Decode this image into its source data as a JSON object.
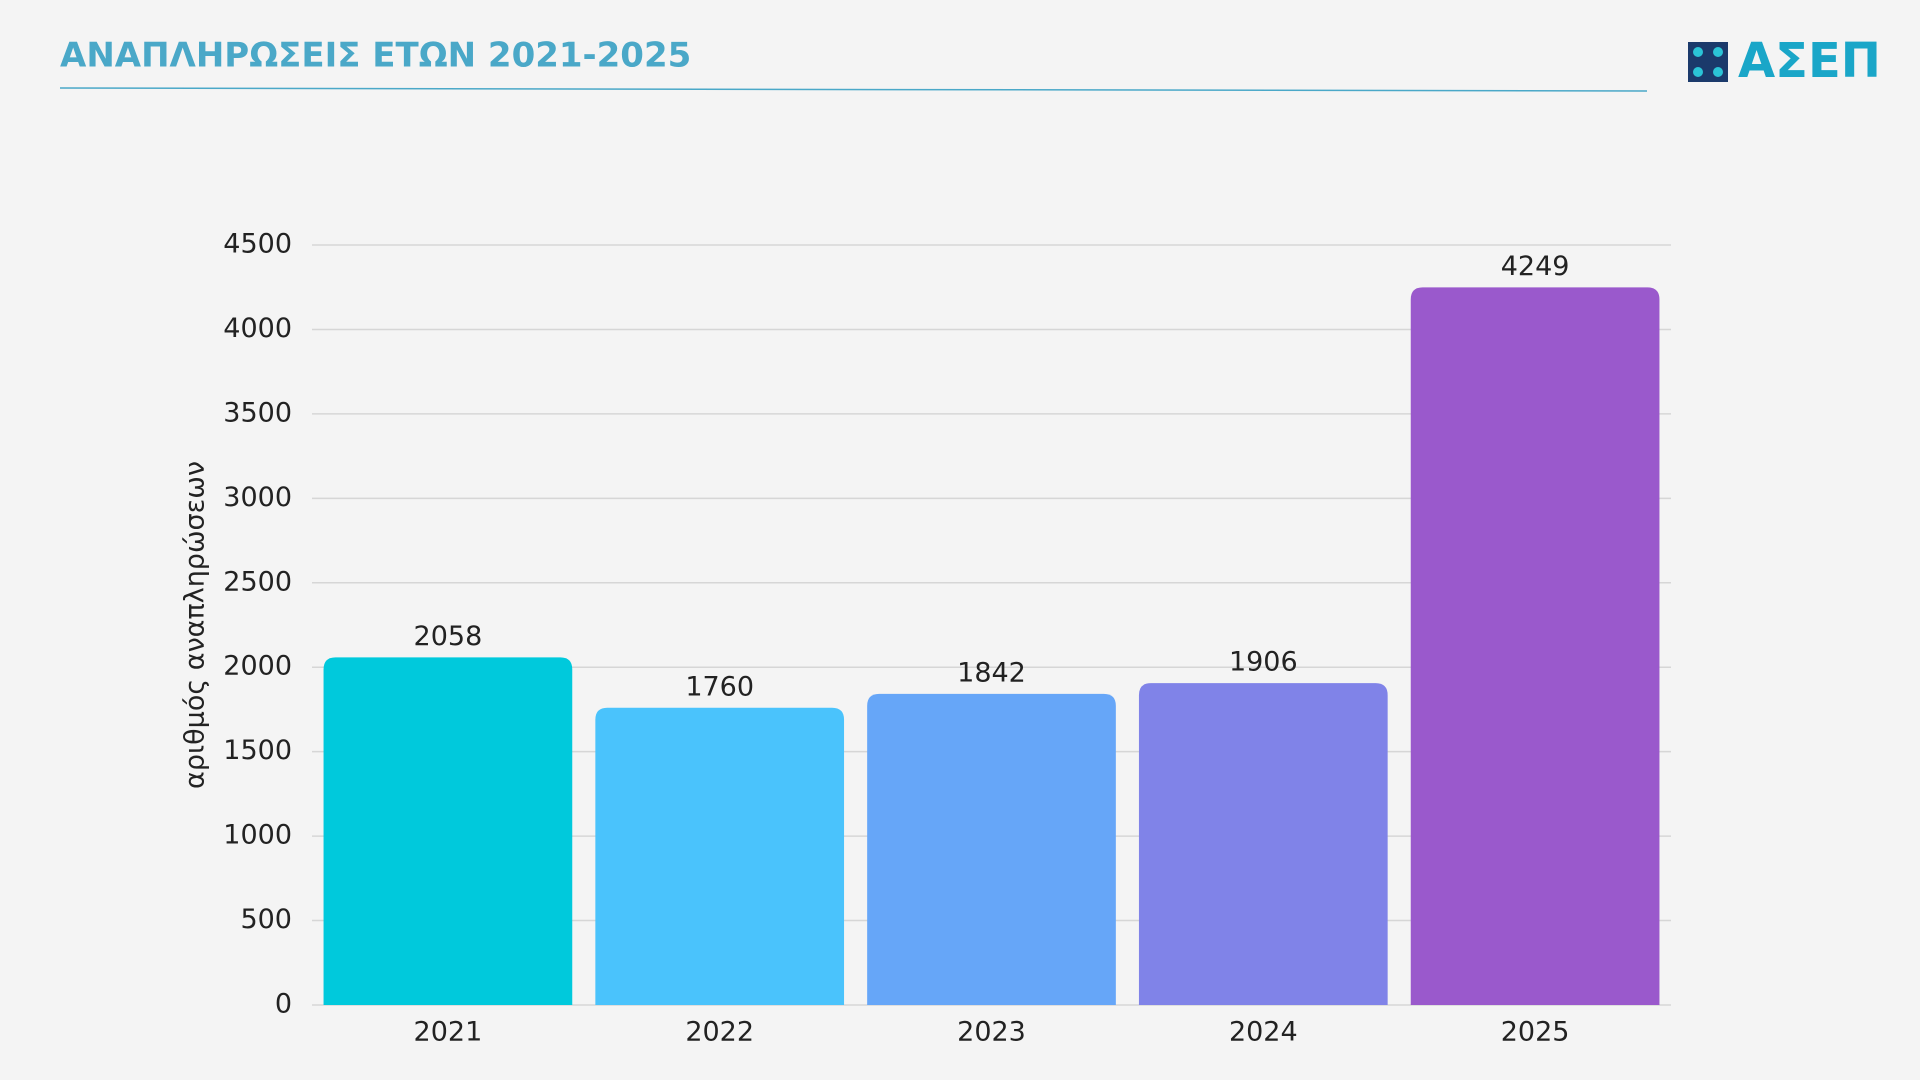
{
  "chart_data": {
    "type": "bar",
    "title": "ΑΝΑΠΛΗΡΩΣΕΙΣ ΕΤΩΝ 2021-2025",
    "logo": "ΑΣΕΠ",
    "y_label": "αριθμός αναπληρώσεων",
    "categories": [
      "2021",
      "2022",
      "2023",
      "2024",
      "2025"
    ],
    "values": [
      2058,
      1760,
      1842,
      1906,
      4249
    ],
    "colors": [
      "#00c9dc",
      "#4ac3fc",
      "#66a6f8",
      "#8083e8",
      "#9a59cc"
    ],
    "ylim": [
      0,
      4500
    ],
    "yticks": [
      0,
      500,
      1000,
      1500,
      2000,
      2500,
      3000,
      3500,
      4000,
      4500
    ],
    "grid": true,
    "data_labels": true
  }
}
